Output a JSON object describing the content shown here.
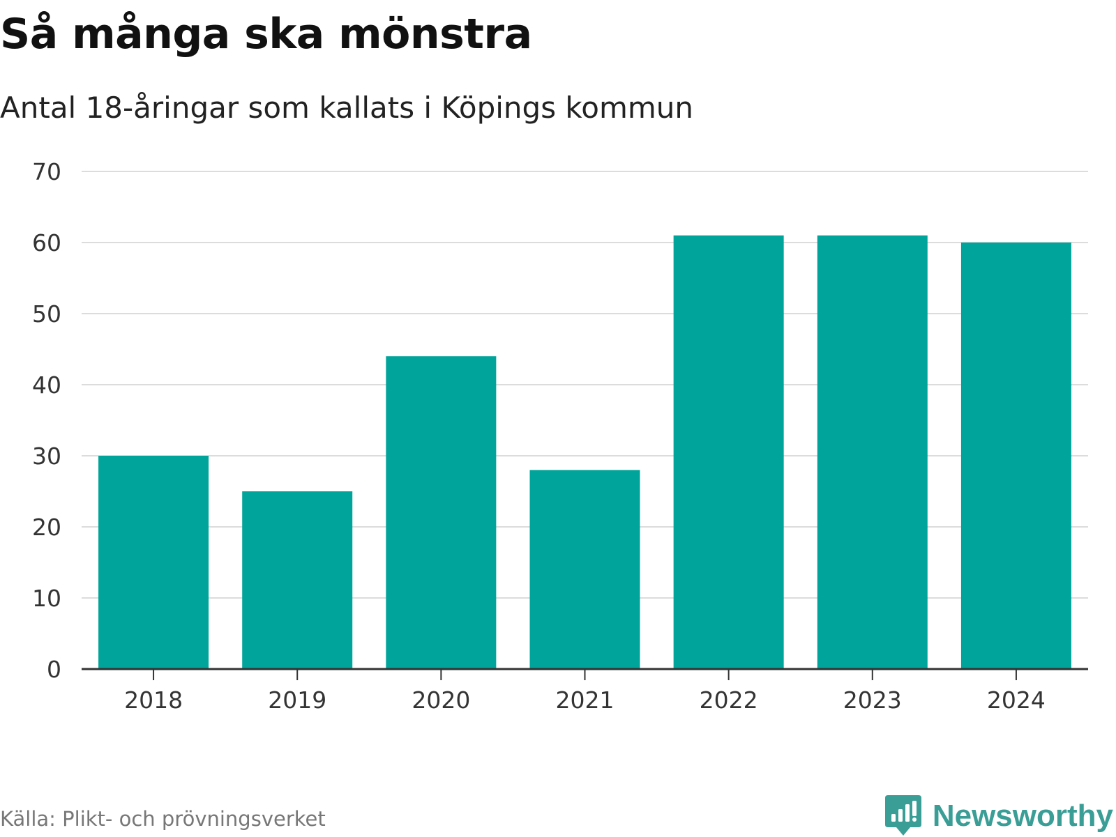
{
  "chart_data": {
    "type": "bar",
    "title": "Så många ska mönstra",
    "subtitle": "Antal 18-åringar som kallats i Köpings kommun",
    "categories": [
      "2018",
      "2019",
      "2020",
      "2021",
      "2022",
      "2023",
      "2024"
    ],
    "values": [
      30,
      25,
      44,
      28,
      61,
      61,
      60
    ],
    "xlabel": "",
    "ylabel": "",
    "ylim": [
      0,
      70
    ],
    "yticks": [
      0,
      10,
      20,
      30,
      40,
      50,
      60,
      70
    ],
    "grid": true,
    "legend": "none",
    "bar_color": "#00a49a"
  },
  "footer": {
    "source": "Källa: Plikt- och prövningsverket",
    "brand": "Newsworthy",
    "brand_icon": "newsworthy-logo-icon",
    "brand_color": "#3a9e97"
  }
}
